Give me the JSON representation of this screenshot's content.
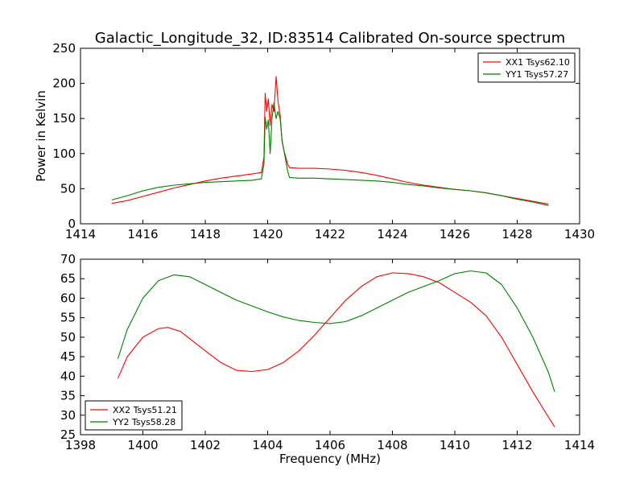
{
  "title": "Galactic_Longitude_32, ID:83514 Calibrated On-source spectrum",
  "chart_data": [
    {
      "type": "line",
      "xlabel": "",
      "ylabel": "Power in Kelvin",
      "xlim": [
        1414,
        1430
      ],
      "ylim": [
        0,
        250
      ],
      "xticks": [
        "1414",
        "1416",
        "1418",
        "1420",
        "1422",
        "1424",
        "1426",
        "1428",
        "1430"
      ],
      "yticks": [
        "0",
        "50",
        "100",
        "150",
        "200",
        "250"
      ],
      "grid": false,
      "legend_position": "top-right",
      "series": [
        {
          "name": "XX1 Tsys62.10",
          "color": "#ff0000",
          "points": [
            [
              1415.0,
              29
            ],
            [
              1415.5,
              33
            ],
            [
              1416.0,
              39
            ],
            [
              1416.5,
              45
            ],
            [
              1417.0,
              51
            ],
            [
              1417.5,
              56
            ],
            [
              1418.0,
              61
            ],
            [
              1418.5,
              65
            ],
            [
              1419.0,
              68
            ],
            [
              1419.5,
              71
            ],
            [
              1419.8,
              73
            ],
            [
              1419.88,
              95
            ],
            [
              1419.92,
              186
            ],
            [
              1419.97,
              160
            ],
            [
              1420.02,
              178
            ],
            [
              1420.08,
              140
            ],
            [
              1420.14,
              170
            ],
            [
              1420.2,
              160
            ],
            [
              1420.27,
              210
            ],
            [
              1420.33,
              175
            ],
            [
              1420.4,
              155
            ],
            [
              1420.46,
              118
            ],
            [
              1420.52,
              105
            ],
            [
              1420.58,
              95
            ],
            [
              1420.64,
              85
            ],
            [
              1420.7,
              80
            ],
            [
              1421.0,
              79
            ],
            [
              1421.5,
              79
            ],
            [
              1422.0,
              78
            ],
            [
              1422.5,
              76
            ],
            [
              1423.0,
              73
            ],
            [
              1423.5,
              69
            ],
            [
              1424.0,
              64
            ],
            [
              1424.5,
              59
            ],
            [
              1425.0,
              55
            ],
            [
              1425.5,
              52
            ],
            [
              1426.0,
              49
            ],
            [
              1426.5,
              47
            ],
            [
              1427.0,
              44
            ],
            [
              1427.5,
              40
            ],
            [
              1428.0,
              36
            ],
            [
              1428.5,
              32
            ],
            [
              1429.0,
              28
            ]
          ]
        },
        {
          "name": "YY1 Tsys57.27",
          "color": "#007f00",
          "points": [
            [
              1415.0,
              34
            ],
            [
              1415.5,
              40
            ],
            [
              1416.0,
              47
            ],
            [
              1416.5,
              52
            ],
            [
              1417.0,
              55
            ],
            [
              1417.5,
              57
            ],
            [
              1418.0,
              59
            ],
            [
              1418.5,
              60
            ],
            [
              1419.0,
              61
            ],
            [
              1419.5,
              62
            ],
            [
              1419.8,
              64
            ],
            [
              1419.88,
              85
            ],
            [
              1419.92,
              152
            ],
            [
              1419.97,
              135
            ],
            [
              1420.02,
              148
            ],
            [
              1420.08,
              100
            ],
            [
              1420.14,
              150
            ],
            [
              1420.2,
              172
            ],
            [
              1420.27,
              150
            ],
            [
              1420.33,
              160
            ],
            [
              1420.4,
              150
            ],
            [
              1420.46,
              120
            ],
            [
              1420.52,
              105
            ],
            [
              1420.58,
              90
            ],
            [
              1420.64,
              75
            ],
            [
              1420.7,
              66
            ],
            [
              1421.0,
              65
            ],
            [
              1421.5,
              65
            ],
            [
              1422.0,
              64
            ],
            [
              1422.5,
              63
            ],
            [
              1423.0,
              62
            ],
            [
              1423.5,
              61
            ],
            [
              1424.0,
              59
            ],
            [
              1424.5,
              56
            ],
            [
              1425.0,
              54
            ],
            [
              1425.5,
              51
            ],
            [
              1426.0,
              49
            ],
            [
              1426.5,
              47
            ],
            [
              1427.0,
              44
            ],
            [
              1427.5,
              40
            ],
            [
              1428.0,
              35
            ],
            [
              1428.5,
              31
            ],
            [
              1429.0,
              26
            ]
          ]
        }
      ]
    },
    {
      "type": "line",
      "xlabel": "Frequency (MHz)",
      "ylabel": "",
      "xlim": [
        1398,
        1414
      ],
      "ylim": [
        25,
        70
      ],
      "xticks": [
        "1398",
        "1400",
        "1402",
        "1404",
        "1406",
        "1408",
        "1410",
        "1412",
        "1414"
      ],
      "yticks": [
        "25",
        "30",
        "35",
        "40",
        "45",
        "50",
        "55",
        "60",
        "65",
        "70"
      ],
      "grid": false,
      "legend_position": "bottom-left",
      "series": [
        {
          "name": "XX2 Tsys51.21",
          "color": "#ff0000",
          "points": [
            [
              1399.2,
              39.5
            ],
            [
              1399.5,
              45
            ],
            [
              1400.0,
              50
            ],
            [
              1400.5,
              52.2
            ],
            [
              1400.8,
              52.5
            ],
            [
              1401.2,
              51.5
            ],
            [
              1401.6,
              49
            ],
            [
              1402.0,
              46.5
            ],
            [
              1402.5,
              43.5
            ],
            [
              1403.0,
              41.5
            ],
            [
              1403.5,
              41.2
            ],
            [
              1404.0,
              41.7
            ],
            [
              1404.5,
              43.5
            ],
            [
              1405.0,
              46.5
            ],
            [
              1405.5,
              50.5
            ],
            [
              1406.0,
              55
            ],
            [
              1406.5,
              59.5
            ],
            [
              1407.0,
              63
            ],
            [
              1407.5,
              65.5
            ],
            [
              1408.0,
              66.5
            ],
            [
              1408.5,
              66.3
            ],
            [
              1409.0,
              65.5
            ],
            [
              1409.5,
              64
            ],
            [
              1410.0,
              61.5
            ],
            [
              1410.5,
              59
            ],
            [
              1411.0,
              55.5
            ],
            [
              1411.5,
              50
            ],
            [
              1412.0,
              43
            ],
            [
              1412.5,
              36
            ],
            [
              1413.0,
              29.5
            ],
            [
              1413.2,
              27
            ]
          ]
        },
        {
          "name": "YY2 Tsys58.28",
          "color": "#007f00",
          "points": [
            [
              1399.2,
              44.5
            ],
            [
              1399.5,
              52
            ],
            [
              1400.0,
              60
            ],
            [
              1400.5,
              64.5
            ],
            [
              1401.0,
              66
            ],
            [
              1401.5,
              65.5
            ],
            [
              1402.0,
              63.5
            ],
            [
              1402.5,
              61.5
            ],
            [
              1403.0,
              59.5
            ],
            [
              1403.5,
              58
            ],
            [
              1404.0,
              56.5
            ],
            [
              1404.5,
              55.2
            ],
            [
              1405.0,
              54.3
            ],
            [
              1405.5,
              53.8
            ],
            [
              1406.0,
              53.5
            ],
            [
              1406.5,
              54
            ],
            [
              1407.0,
              55.5
            ],
            [
              1407.5,
              57.5
            ],
            [
              1408.0,
              59.5
            ],
            [
              1408.5,
              61.5
            ],
            [
              1409.0,
              63
            ],
            [
              1409.5,
              64.5
            ],
            [
              1410.0,
              66.3
            ],
            [
              1410.5,
              67
            ],
            [
              1411.0,
              66.5
            ],
            [
              1411.5,
              63.5
            ],
            [
              1412.0,
              57.5
            ],
            [
              1412.5,
              50
            ],
            [
              1413.0,
              41
            ],
            [
              1413.2,
              36
            ]
          ]
        }
      ]
    }
  ]
}
